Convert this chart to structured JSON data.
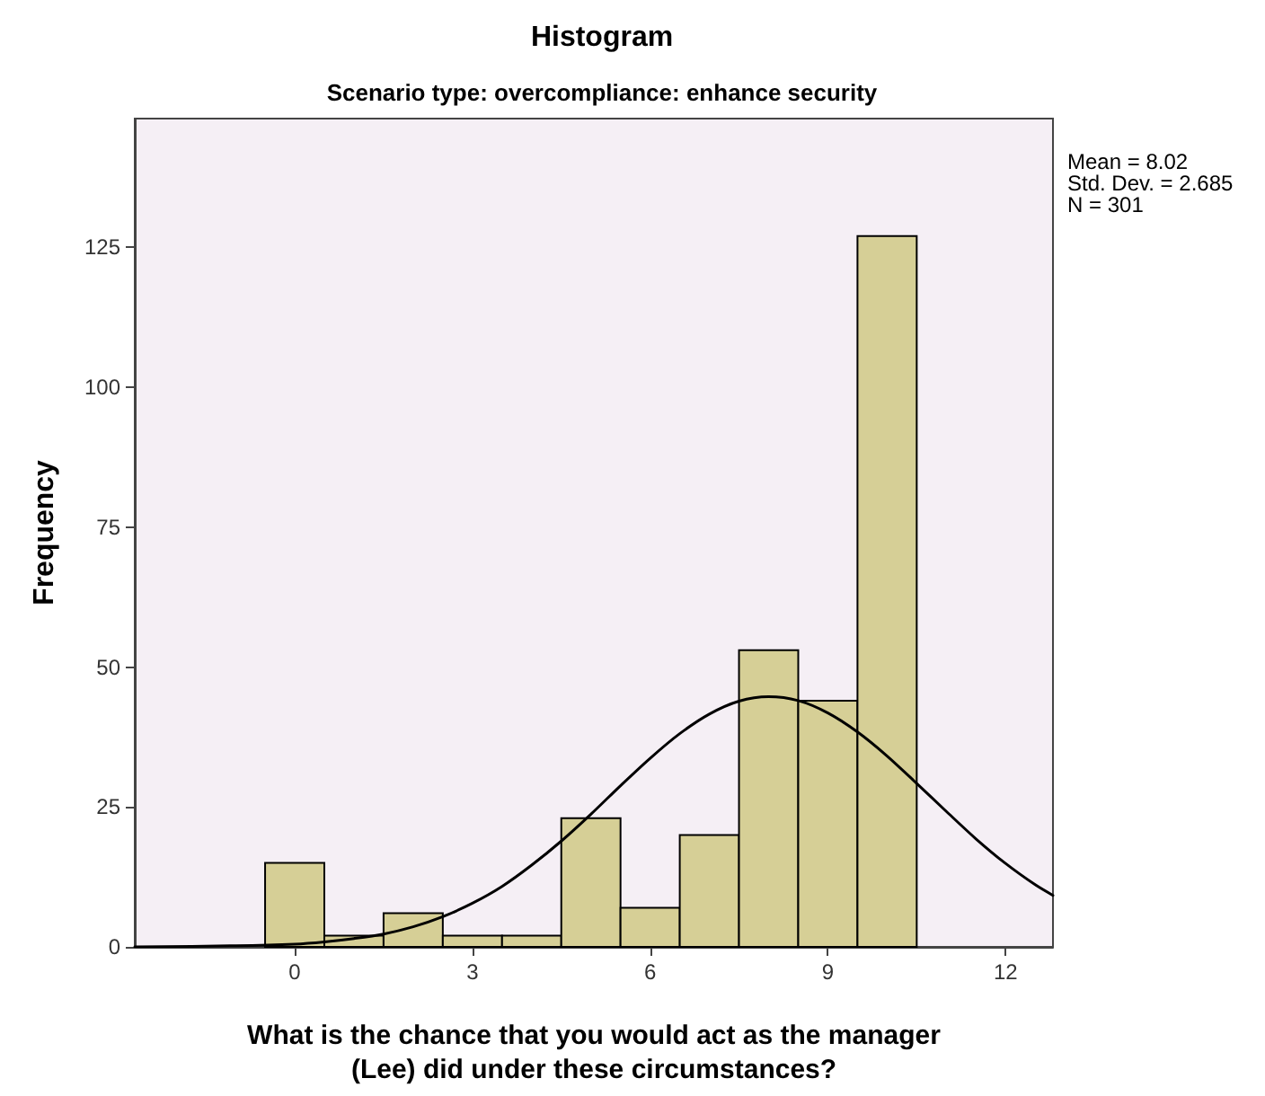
{
  "chart_data": {
    "type": "histogram",
    "title": "Histogram",
    "subtitle": "Scenario type: overcompliance: enhance security",
    "xlabel": "What is the chance that you would act as the manager\n(Lee) did under these circumstances?",
    "ylabel": "Frequency",
    "bins": [
      -0.5,
      0.5,
      1.5,
      2.5,
      3.5,
      4.5,
      5.5,
      6.5,
      7.5,
      8.5,
      9.5,
      10.5
    ],
    "values": [
      15,
      2,
      6,
      2,
      2,
      23,
      7,
      20,
      53,
      44,
      127
    ],
    "color": "#d6cf96",
    "series": [
      {
        "type": "line",
        "color": "#000000",
        "x": [
          -2.7,
          -1,
          0,
          0.5,
          1,
          1.5,
          2,
          2.5,
          3,
          3.5,
          4,
          4.5,
          5,
          5.5,
          6,
          6.5,
          7,
          7.5,
          8,
          8.5,
          9,
          9.5,
          10,
          10.5,
          11,
          11.5,
          12,
          12.5,
          12.8
        ],
        "values": [
          0,
          0.2,
          0.5,
          0.9,
          1.5,
          2.3,
          3.6,
          5.4,
          7.8,
          10.8,
          14.6,
          18.9,
          23.7,
          28.8,
          33.7,
          38.1,
          41.6,
          43.9,
          44.7,
          44.0,
          41.8,
          38.4,
          34.1,
          29.2,
          24.2,
          19.3,
          14.9,
          11.1,
          9.2
        ]
      }
    ],
    "xlim": [
      -2.7,
      12.8
    ],
    "xticks": [
      0,
      3,
      6,
      9,
      12
    ],
    "ylim": [
      0,
      148
    ],
    "yticks": [
      0,
      25,
      50,
      75,
      100,
      125
    ],
    "grid": false,
    "marker": "none",
    "line_style": "solid",
    "annotations": [
      "Mean = 8.02",
      "Std. Dev. = 2.685",
      "N = 301"
    ]
  }
}
